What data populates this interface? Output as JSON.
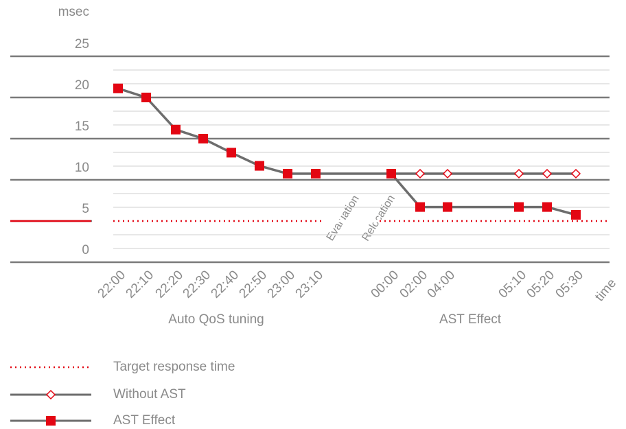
{
  "chart_data": {
    "type": "line",
    "y_label": "msec",
    "x_label": "time",
    "categories": [
      "22:00",
      "22:10",
      "22:20",
      "22:30",
      "22:40",
      "22:50",
      "23:00",
      "23:10",
      "00:00",
      "02:00",
      "04:00",
      "05:10",
      "05:20",
      "05:30"
    ],
    "series": [
      {
        "name": "Without AST",
        "color": "#6d6d6d",
        "marker": "diamond",
        "marker_color": "#e30613",
        "values": [
          null,
          null,
          null,
          null,
          null,
          null,
          null,
          null,
          10.75,
          10.75,
          10.75,
          10.75,
          10.75,
          10.75
        ]
      },
      {
        "name": "AST Effect",
        "color": "#6d6d6d",
        "marker": "square",
        "marker_color": "#e30613",
        "values": [
          21.1,
          20,
          16.1,
          15,
          13.3,
          11.7,
          10.75,
          10.75,
          10.75,
          6.7,
          6.7,
          6.7,
          6.7,
          5.75
        ]
      }
    ],
    "target": {
      "name": "Target response time",
      "value": 5,
      "color": "#e30613"
    },
    "groups": [
      "Auto QoS tuning",
      "AST Effect"
    ],
    "annotations": [
      "Evaluation",
      "Relocation"
    ],
    "ylim": [
      0,
      25
    ],
    "yticks": [
      0,
      5,
      10,
      15,
      20,
      25
    ],
    "grid": true
  }
}
